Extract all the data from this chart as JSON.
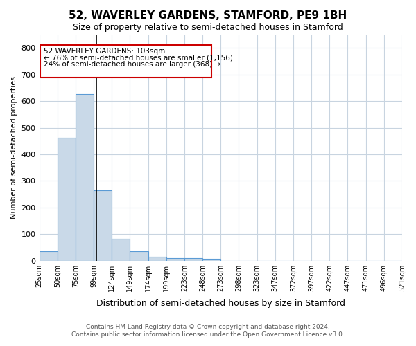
{
  "title": "52, WAVERLEY GARDENS, STAMFORD, PE9 1BH",
  "subtitle": "Size of property relative to semi-detached houses in Stamford",
  "xlabel": "Distribution of semi-detached houses by size in Stamford",
  "ylabel": "Number of semi-detached properties",
  "bin_labels": [
    "25sqm",
    "50sqm",
    "75sqm",
    "99sqm",
    "124sqm",
    "149sqm",
    "174sqm",
    "199sqm",
    "223sqm",
    "248sqm",
    "273sqm",
    "298sqm",
    "323sqm",
    "347sqm",
    "372sqm",
    "397sqm",
    "422sqm",
    "447sqm",
    "471sqm",
    "496sqm",
    "521sqm"
  ],
  "bar_heights": [
    35,
    462,
    625,
    265,
    83,
    35,
    15,
    10,
    10,
    8,
    0,
    0,
    0,
    0,
    0,
    0,
    0,
    0,
    0,
    0
  ],
  "bar_color": "#c9d9e8",
  "bar_edge_color": "#5b9bd5",
  "property_line_color": "#000000",
  "annotation_box_color": "#cc0000",
  "annotation_text_line1": "52 WAVERLEY GARDENS: 103sqm",
  "annotation_text_line2": "← 76% of semi-detached houses are smaller (1,156)",
  "annotation_text_line3": "24% of semi-detached houses are larger (368) →",
  "ylim": [
    0,
    850
  ],
  "yticks": [
    0,
    100,
    200,
    300,
    400,
    500,
    600,
    700,
    800
  ],
  "footer_line1": "Contains HM Land Registry data © Crown copyright and database right 2024.",
  "footer_line2": "Contains public sector information licensed under the Open Government Licence v3.0.",
  "background_color": "#ffffff",
  "grid_color": "#c8d4e0"
}
